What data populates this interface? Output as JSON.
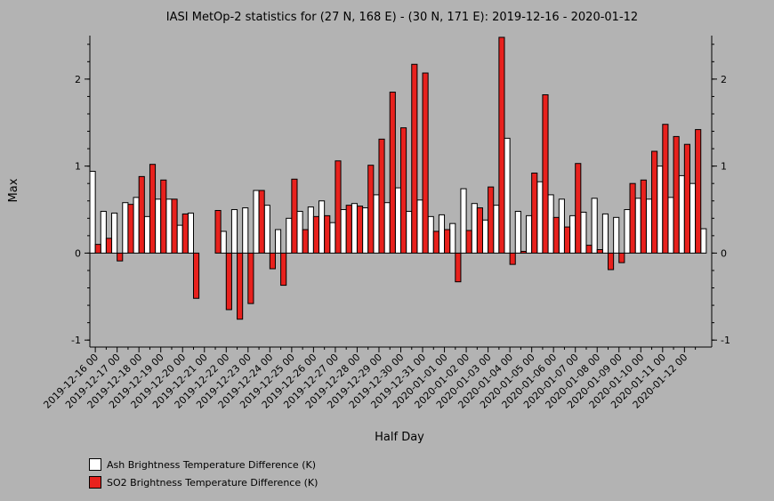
{
  "chart_data": {
    "type": "bar",
    "title": "IASI MetOp-2 statistics for (27 N, 168 E) - (30 N, 171 E): 2019-12-16 - 2020-01-12",
    "xlabel": "Half Day",
    "ylabel": "Max",
    "ylim": [
      -1.08,
      2.5
    ],
    "yticks": [
      -1,
      0,
      1,
      2
    ],
    "date_labels": [
      "2019-12-16 00",
      "2019-12-17 00",
      "2019-12-18 00",
      "2019-12-19 00",
      "2019-12-20 00",
      "2019-12-21 00",
      "2019-12-22 00",
      "2019-12-23 00",
      "2019-12-24 00",
      "2019-12-25 00",
      "2019-12-26 00",
      "2019-12-27 00",
      "2019-12-28 00",
      "2019-12-29 00",
      "2019-12-30 00",
      "2019-12-31 00",
      "2020-01-01 00",
      "2020-01-02 00",
      "2020-01-03 00",
      "2020-01-04 00",
      "2020-01-05 00",
      "2020-01-06 00",
      "2020-01-07 00",
      "2020-01-08 00",
      "2020-01-09 00",
      "2020-01-10 00",
      "2020-01-11 00",
      "2020-01-12 00"
    ],
    "series": [
      {
        "name": "Ash Brightness Temperature Difference (K)",
        "color": "#ffffff",
        "values": [
          0.94,
          0.48,
          0.46,
          0.58,
          0.64,
          0.42,
          0.62,
          0.62,
          0.32,
          0.46,
          null,
          null,
          0.25,
          0.5,
          0.52,
          0.72,
          0.55,
          0.27,
          0.4,
          0.48,
          0.53,
          0.6,
          0.35,
          0.5,
          0.57,
          0.52,
          0.67,
          0.58,
          0.75,
          0.48,
          0.61,
          0.42,
          0.44,
          0.34,
          0.74,
          0.57,
          0.38,
          0.55,
          1.32,
          0.48,
          0.43,
          0.82,
          0.67,
          0.62,
          0.43,
          0.47,
          0.63,
          0.45,
          0.41,
          0.5,
          0.63,
          0.62,
          1.0,
          0.64,
          0.89,
          0.8,
          0.28
        ]
      },
      {
        "name": "SO2 Brightness Temperature Difference (K)",
        "color": "#e8211d",
        "values": [
          0.1,
          0.17,
          -0.09,
          0.56,
          0.88,
          1.02,
          0.84,
          0.62,
          0.45,
          -0.52,
          null,
          0.49,
          -0.65,
          -0.76,
          -0.58,
          0.72,
          -0.18,
          -0.37,
          0.85,
          0.27,
          0.42,
          0.43,
          1.06,
          0.55,
          0.54,
          1.01,
          1.31,
          1.85,
          1.44,
          2.17,
          2.07,
          0.25,
          0.27,
          -0.33,
          0.26,
          0.52,
          0.76,
          2.48,
          -0.13,
          0.02,
          0.92,
          1.82,
          0.41,
          0.3,
          1.03,
          0.09,
          0.04,
          -0.19,
          -0.11,
          0.8,
          0.84,
          1.17,
          1.48,
          1.34,
          1.25,
          1.42,
          null
        ]
      }
    ],
    "legend_position": "bottom-left"
  }
}
